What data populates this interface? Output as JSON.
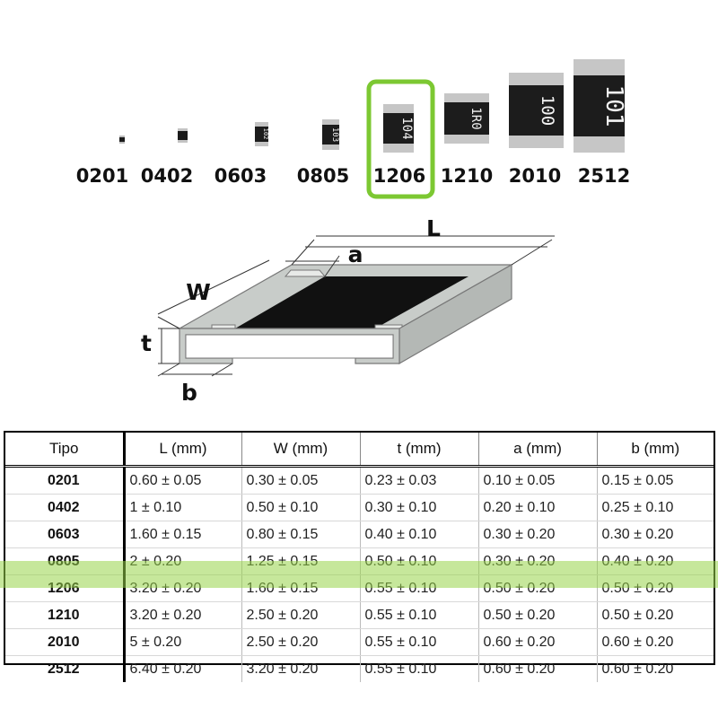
{
  "colors": {
    "highlight": "#98d448",
    "selection_frame": "#7cc832",
    "pad": "#c8ccc9",
    "resistive_body": "#111111"
  },
  "resistor_sizes": [
    {
      "label": "0201"
    },
    {
      "label": "0402"
    },
    {
      "label": "0603",
      "marking": "102"
    },
    {
      "label": "0805",
      "marking": "103"
    },
    {
      "label": "1206",
      "marking": "104",
      "selected": true
    },
    {
      "label": "1210",
      "marking": "1R0"
    },
    {
      "label": "2010",
      "marking": "100"
    },
    {
      "label": "2512",
      "marking": "101"
    }
  ],
  "diagram": {
    "dimension_labels": {
      "length": "L",
      "width": "W",
      "thickness": "t",
      "pad": "a",
      "bottom_pad": "b"
    }
  },
  "table": {
    "headers": [
      "Tipo",
      "L (mm)",
      "W (mm)",
      "t (mm)",
      "a (mm)",
      "b (mm)"
    ],
    "rows": [
      {
        "tipo": "0201",
        "L": "0.60 ± 0.05",
        "W": "0.30 ± 0.05",
        "t": "0.23 ±  0.03",
        "a": "0.10 ±  0.05",
        "b": "0.15 ±  0.05"
      },
      {
        "tipo": "0402",
        "L": "1 ± 0.10",
        "W": "0.50 ± 0.10",
        "t": "0.30 ±  0.10",
        "a": "0.20 ±  0.10",
        "b": "0.25 ±  0.10"
      },
      {
        "tipo": "0603",
        "L": "1.60 ± 0.15",
        "W": "0.80 ± 0.15",
        "t": "0.40 ±  0.10",
        "a": "0.30 ±  0.20",
        "b": "0.30 ±  0.20"
      },
      {
        "tipo": "0805",
        "L": "2 ± 0.20",
        "W": "1.25 ± 0.15",
        "t": "0.50 ±  0.10",
        "a": "0.30 ±  0.20",
        "b": "0.40 ±  0.20"
      },
      {
        "tipo": "1206",
        "L": "3.20 ± 0.20",
        "W": "1.60 ± 0.15",
        "t": "0.55 ±  0.10",
        "a": "0.50 ±  0.20",
        "b": "0.50 ±  0.20",
        "highlighted": true
      },
      {
        "tipo": "1210",
        "L": "3.20 ± 0.20",
        "W": "2.50 ± 0.20",
        "t": "0.55 ±  0.10",
        "a": "0.50 ±  0.20",
        "b": "0.50 ±  0.20"
      },
      {
        "tipo": "2010",
        "L": "5 ± 0.20",
        "W": "2.50 ± 0.20",
        "t": "0.55 ±  0.10",
        "a": "0.60 ±  0.20",
        "b": "0.60 ±  0.20"
      },
      {
        "tipo": "2512",
        "L": "6.40 ± 0.20",
        "W": "3.20 ± 0.20",
        "t": "0.55 ±  0.10",
        "a": "0.60 ±  0.20",
        "b": "0.60 ±  0.20"
      }
    ]
  }
}
